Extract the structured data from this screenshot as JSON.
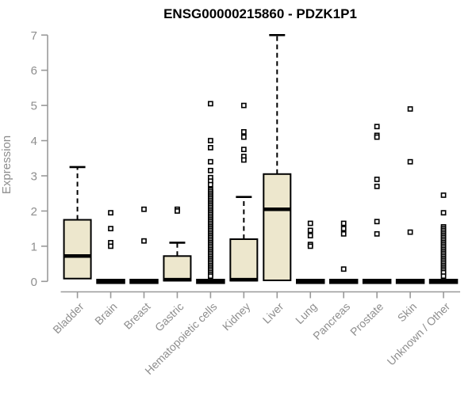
{
  "chart_data": {
    "type": "boxplot",
    "title": "ENSG00000215860 - PDZK1P1",
    "ylabel": "Expression",
    "xlabel": "",
    "ylim": [
      0,
      7
    ],
    "yticks": [
      0,
      1,
      2,
      3,
      4,
      5,
      6,
      7
    ],
    "grid": false,
    "legend": false,
    "colors": {
      "box_fill": "#EDE7CD",
      "box_border": "#000000",
      "median": "#000000",
      "whisker": "#000000",
      "outlier_fill": "#FFFFFF",
      "axis": "#999999",
      "label": "#8E8E8E",
      "title": "#000000",
      "background": "#FFFFFF"
    },
    "categories": [
      "Bladder",
      "Brain",
      "Breast",
      "Gastric",
      "Hematopoietic cells",
      "Kidney",
      "Liver",
      "Lung",
      "Pancreas",
      "Prostate",
      "Skin",
      "Unknown / Other"
    ],
    "series": [
      {
        "category": "Bladder",
        "q1": 0.08,
        "median": 0.72,
        "q3": 1.75,
        "whisker_low": 0.08,
        "whisker_high": 3.25,
        "outliers": []
      },
      {
        "category": "Brain",
        "q1": 0,
        "median": 0,
        "q3": 0,
        "whisker_low": 0,
        "whisker_high": 0,
        "outliers": [
          1.95,
          1.5,
          1.1,
          1.0
        ]
      },
      {
        "category": "Breast",
        "q1": 0,
        "median": 0,
        "q3": 0,
        "whisker_low": 0,
        "whisker_high": 0,
        "outliers": [
          2.05,
          1.15
        ]
      },
      {
        "category": "Gastric",
        "q1": 0.02,
        "median": 0.05,
        "q3": 0.72,
        "whisker_low": 0.02,
        "whisker_high": 1.1,
        "outliers": [
          2.05,
          2.0
        ]
      },
      {
        "category": "Hematopoietic cells",
        "q1": 0,
        "median": 0,
        "q3": 0,
        "whisker_low": 0,
        "whisker_high": 0,
        "outliers": [
          5.05,
          4.0,
          3.8,
          3.4,
          3.15,
          2.95,
          2.85,
          2.75,
          2.6,
          2.55,
          2.5,
          2.45,
          2.4,
          2.35,
          2.3,
          2.25,
          2.2,
          2.15,
          2.1,
          2.05,
          2.0,
          1.95,
          1.9,
          1.85,
          1.8,
          1.75,
          1.7,
          1.65,
          1.6,
          1.55,
          1.5,
          1.45,
          1.4,
          1.35,
          1.3,
          1.25,
          1.2,
          1.15,
          1.1,
          1.05,
          1.0,
          0.95,
          0.9,
          0.85,
          0.8,
          0.75,
          0.7,
          0.65,
          0.6,
          0.55,
          0.5,
          0.45,
          0.4,
          0.35,
          0.3,
          0.25,
          0.2,
          0.15
        ]
      },
      {
        "category": "Kidney",
        "q1": 0.02,
        "median": 0.05,
        "q3": 1.2,
        "whisker_low": 0.02,
        "whisker_high": 2.4,
        "outliers": [
          5.0,
          4.25,
          4.1,
          3.75,
          3.55,
          3.45
        ]
      },
      {
        "category": "Liver",
        "q1": 0.03,
        "median": 2.05,
        "q3": 3.05,
        "whisker_low": 0.03,
        "whisker_high": 7.0,
        "outliers": []
      },
      {
        "category": "Lung",
        "q1": 0,
        "median": 0,
        "q3": 0,
        "whisker_low": 0,
        "whisker_high": 0,
        "outliers": [
          1.65,
          1.45,
          1.3,
          1.05,
          1.0
        ]
      },
      {
        "category": "Pancreas",
        "q1": 0,
        "median": 0,
        "q3": 0,
        "whisker_low": 0,
        "whisker_high": 0,
        "outliers": [
          1.65,
          1.5,
          1.35,
          0.35
        ]
      },
      {
        "category": "Prostate",
        "q1": 0,
        "median": 0,
        "q3": 0,
        "whisker_low": 0,
        "whisker_high": 0,
        "outliers": [
          4.4,
          4.15,
          4.1,
          2.9,
          2.7,
          1.7,
          1.35
        ]
      },
      {
        "category": "Skin",
        "q1": 0,
        "median": 0,
        "q3": 0,
        "whisker_low": 0,
        "whisker_high": 0,
        "outliers": [
          4.9,
          3.4,
          1.4
        ]
      },
      {
        "category": "Unknown / Other",
        "q1": 0,
        "median": 0,
        "q3": 0,
        "whisker_low": 0,
        "whisker_high": 0,
        "outliers": [
          2.45,
          1.95,
          1.55,
          1.5,
          1.45,
          1.4,
          1.35,
          1.3,
          1.25,
          1.2,
          1.15,
          1.1,
          1.05,
          1.0,
          0.95,
          0.9,
          0.85,
          0.8,
          0.75,
          0.7,
          0.65,
          0.6,
          0.55,
          0.5,
          0.45,
          0.4,
          0.35,
          0.3,
          0.25,
          0.15
        ]
      }
    ]
  }
}
